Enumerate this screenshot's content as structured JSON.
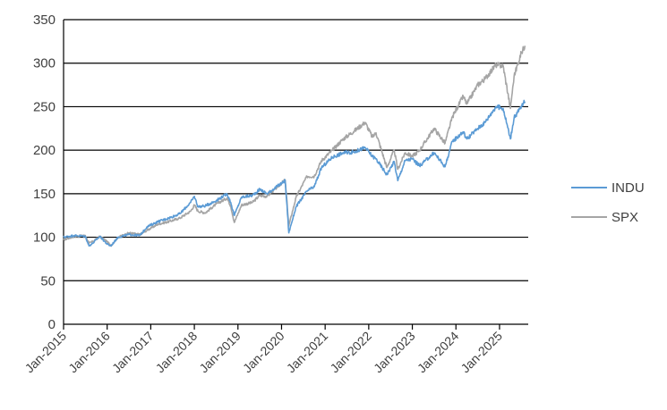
{
  "chart_data": {
    "type": "line",
    "title": "",
    "xlabel": "",
    "ylabel": "",
    "ylim": [
      0,
      350
    ],
    "yticks": [
      0,
      50,
      100,
      150,
      200,
      250,
      300,
      350
    ],
    "x_range": [
      "Jan-2015",
      "Aug-2025"
    ],
    "x_tick_labels": [
      "Jan-2015",
      "Jan-2016",
      "Jan-2017",
      "Jan-2018",
      "Jan-2019",
      "Jan-2020",
      "Jan-2021",
      "Jan-2022",
      "Jan-2023",
      "Jan-2024",
      "Jan-2025"
    ],
    "grid": true,
    "legend_position": "right",
    "colors": {
      "INDU": "#5b9bd5",
      "SPX": "#a5a5a5",
      "gridline": "#000000"
    },
    "series": [
      {
        "name": "INDU",
        "points": [
          [
            "Jan-2015",
            100
          ],
          [
            "Apr-2015",
            102
          ],
          [
            "Jul-2015",
            101
          ],
          [
            "Aug-2015",
            90
          ],
          [
            "Sep-2015",
            93
          ],
          [
            "Nov-2015",
            101
          ],
          [
            "Jan-2016",
            92
          ],
          [
            "Feb-2016",
            90
          ],
          [
            "Apr-2016",
            100
          ],
          [
            "Jul-2016",
            103
          ],
          [
            "Oct-2016",
            102
          ],
          [
            "Dec-2016",
            112
          ],
          [
            "Mar-2017",
            118
          ],
          [
            "Jun-2017",
            122
          ],
          [
            "Sep-2017",
            127
          ],
          [
            "Dec-2017",
            140
          ],
          [
            "Jan-2018",
            147
          ],
          [
            "Feb-2018",
            135
          ],
          [
            "Apr-2018",
            136
          ],
          [
            "Jul-2018",
            142
          ],
          [
            "Oct-2018",
            150
          ],
          [
            "Nov-2018",
            140
          ],
          [
            "Dec-2018",
            125
          ],
          [
            "Feb-2019",
            146
          ],
          [
            "May-2019",
            148
          ],
          [
            "Jul-2019",
            155
          ],
          [
            "Sep-2019",
            150
          ],
          [
            "Jan-2020",
            162
          ],
          [
            "Feb-2020",
            165
          ],
          [
            "Mar-2020",
            105
          ],
          [
            "May-2020",
            135
          ],
          [
            "Aug-2020",
            153
          ],
          [
            "Oct-2020",
            158
          ],
          [
            "Dec-2020",
            180
          ],
          [
            "Mar-2021",
            192
          ],
          [
            "Jun-2021",
            197
          ],
          [
            "Sep-2021",
            198
          ],
          [
            "Dec-2021",
            203
          ],
          [
            "Feb-2022",
            193
          ],
          [
            "Mar-2022",
            190
          ],
          [
            "Jun-2022",
            172
          ],
          [
            "Aug-2022",
            187
          ],
          [
            "Sep-2022",
            165
          ],
          [
            "Nov-2022",
            188
          ],
          [
            "Jan-2023",
            190
          ],
          [
            "Mar-2023",
            182
          ],
          [
            "Jul-2023",
            197
          ],
          [
            "Oct-2023",
            181
          ],
          [
            "Dec-2023",
            210
          ],
          [
            "Mar-2024",
            221
          ],
          [
            "Apr-2024",
            213
          ],
          [
            "Jul-2024",
            225
          ],
          [
            "Sep-2024",
            232
          ],
          [
            "Dec-2024",
            250
          ],
          [
            "Feb-2025",
            248
          ],
          [
            "Apr-2025",
            213
          ],
          [
            "May-2025",
            237
          ],
          [
            "Jul-2025",
            250
          ],
          [
            "Aug-2025",
            256
          ]
        ]
      },
      {
        "name": "SPX",
        "points": [
          [
            "Jan-2015",
            97
          ],
          [
            "Apr-2015",
            101
          ],
          [
            "Jul-2015",
            102
          ],
          [
            "Aug-2015",
            93
          ],
          [
            "Sep-2015",
            95
          ],
          [
            "Nov-2015",
            101
          ],
          [
            "Jan-2016",
            95
          ],
          [
            "Feb-2016",
            90
          ],
          [
            "Apr-2016",
            100
          ],
          [
            "Jul-2016",
            105
          ],
          [
            "Oct-2016",
            103
          ],
          [
            "Dec-2016",
            108
          ],
          [
            "Mar-2017",
            115
          ],
          [
            "Jun-2017",
            118
          ],
          [
            "Sep-2017",
            122
          ],
          [
            "Dec-2017",
            130
          ],
          [
            "Jan-2018",
            137
          ],
          [
            "Feb-2018",
            130
          ],
          [
            "Apr-2018",
            128
          ],
          [
            "Jul-2018",
            138
          ],
          [
            "Oct-2018",
            145
          ],
          [
            "Nov-2018",
            136
          ],
          [
            "Dec-2018",
            117
          ],
          [
            "Feb-2019",
            137
          ],
          [
            "May-2019",
            140
          ],
          [
            "Jul-2019",
            148
          ],
          [
            "Sep-2019",
            147
          ],
          [
            "Jan-2020",
            162
          ],
          [
            "Feb-2020",
            166
          ],
          [
            "Mar-2020",
            113
          ],
          [
            "May-2020",
            146
          ],
          [
            "Aug-2020",
            170
          ],
          [
            "Oct-2020",
            170
          ],
          [
            "Dec-2020",
            188
          ],
          [
            "Mar-2021",
            200
          ],
          [
            "Jun-2021",
            213
          ],
          [
            "Sep-2021",
            222
          ],
          [
            "Dec-2021",
            232
          ],
          [
            "Feb-2022",
            215
          ],
          [
            "Mar-2022",
            220
          ],
          [
            "Jun-2022",
            180
          ],
          [
            "Aug-2022",
            200
          ],
          [
            "Sep-2022",
            178
          ],
          [
            "Nov-2022",
            197
          ],
          [
            "Jan-2023",
            193
          ],
          [
            "Mar-2023",
            200
          ],
          [
            "Jul-2023",
            225
          ],
          [
            "Oct-2023",
            208
          ],
          [
            "Dec-2023",
            238
          ],
          [
            "Mar-2024",
            262
          ],
          [
            "Apr-2024",
            253
          ],
          [
            "Jul-2024",
            275
          ],
          [
            "Sep-2024",
            282
          ],
          [
            "Dec-2024",
            298
          ],
          [
            "Feb-2025",
            297
          ],
          [
            "Apr-2025",
            248
          ],
          [
            "May-2025",
            285
          ],
          [
            "Jul-2025",
            312
          ],
          [
            "Aug-2025",
            320
          ]
        ]
      }
    ]
  }
}
